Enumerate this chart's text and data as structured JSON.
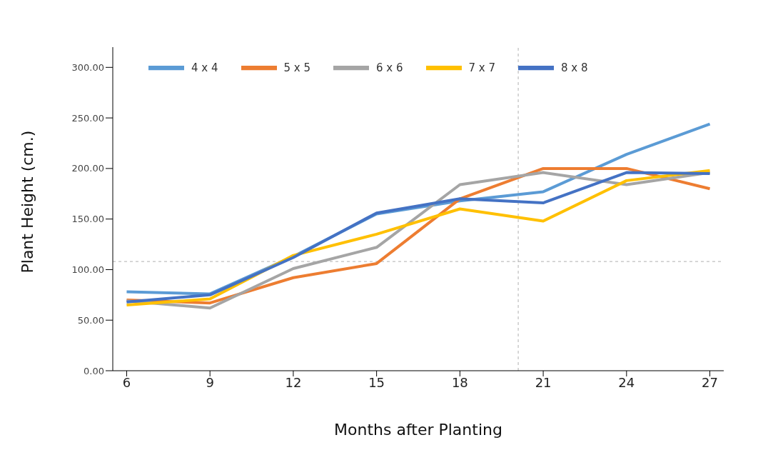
{
  "chart_data": {
    "type": "line",
    "xlabel": "Months after Planting",
    "ylabel": "Plant Height (cm.)",
    "x": [
      6,
      9,
      12,
      15,
      18,
      21,
      24,
      27
    ],
    "series": [
      {
        "name": "4 x 4",
        "color": "#5b9bd5",
        "values": [
          78,
          76,
          113,
          155,
          168,
          177,
          214,
          244
        ]
      },
      {
        "name": "5 x 5",
        "color": "#ed7d31",
        "values": [
          70,
          67,
          92,
          106,
          170,
          200,
          200,
          180
        ]
      },
      {
        "name": "6 x 6",
        "color": "#a5a5a5",
        "values": [
          69,
          62,
          101,
          122,
          184,
          196,
          184,
          196
        ]
      },
      {
        "name": "7 x 7",
        "color": "#ffc000",
        "values": [
          65,
          71,
          114,
          135,
          160,
          148,
          188,
          198
        ]
      },
      {
        "name": "8 x 8",
        "color": "#4472c4",
        "values": [
          68,
          75,
          112,
          156,
          170,
          166,
          196,
          195
        ]
      }
    ],
    "xlim": [
      5.5,
      27.5
    ],
    "xticks": [
      6,
      9,
      12,
      15,
      18,
      21,
      24,
      27
    ],
    "ylim": [
      0,
      320
    ],
    "yticks": [
      {
        "value": 0,
        "label": "0.00"
      },
      {
        "value": 50,
        "label": "50.00"
      },
      {
        "value": 100,
        "label": "100.00"
      },
      {
        "value": 150,
        "label": "150.00"
      },
      {
        "value": 200,
        "label": "200.00"
      },
      {
        "value": 250,
        "label": "250.00"
      },
      {
        "value": 300,
        "label": "300.00"
      }
    ],
    "ref_lines": [
      {
        "axis": "x",
        "value": 20.1,
        "color": "#b0b0b0",
        "line_style": "dashed"
      },
      {
        "axis": "y",
        "value": 108,
        "color": "#b0b0b0",
        "line_style": "dashed"
      }
    ],
    "legend": "top",
    "marker": "none",
    "line_style": "solid"
  }
}
